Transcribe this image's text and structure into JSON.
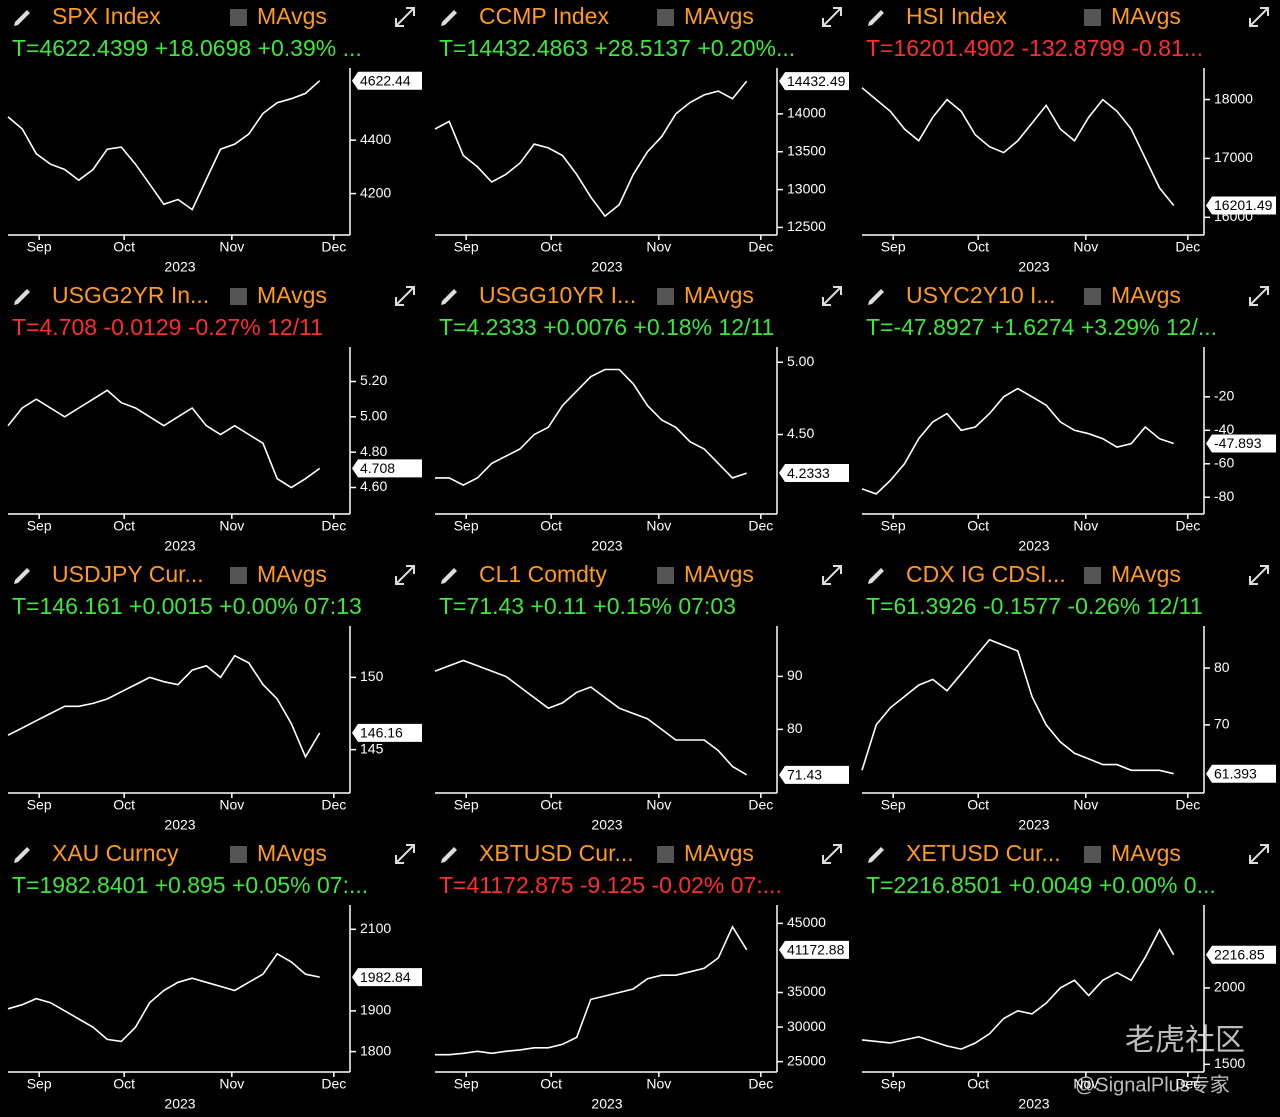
{
  "chart_data": [
    {
      "type": "line",
      "title": "SPX Index",
      "legend": "MAvgs",
      "quote": "T=4622.4399 +18.0698 +0.39% ...",
      "quote_color": "#3ee63e",
      "x": [
        0,
        5,
        10,
        15,
        20,
        25,
        30,
        35,
        40,
        45,
        50,
        55,
        60,
        65,
        70,
        75,
        80,
        85,
        90,
        95,
        100,
        105,
        110
      ],
      "values": [
        4487,
        4442,
        4349,
        4310,
        4290,
        4250,
        4290,
        4366,
        4374,
        4310,
        4235,
        4160,
        4178,
        4140,
        4253,
        4366,
        4385,
        4423,
        4500,
        4540,
        4555,
        4575,
        4622.4399
      ],
      "last_label": "4622.44",
      "xlim": [
        0,
        120
      ],
      "xticks": [
        {
          "value": 11,
          "label": "Sep"
        },
        {
          "value": 41,
          "label": "Oct"
        },
        {
          "value": 79,
          "label": "Nov"
        },
        {
          "value": 115,
          "label": "Dec"
        }
      ],
      "year": "2023",
      "ylim": [
        4045,
        4640
      ],
      "yticks": [
        4400,
        4200
      ]
    },
    {
      "type": "line",
      "title": "CCMP Index",
      "legend": "MAvgs",
      "quote": "T=14432.4863 +28.5137 +0.20%...",
      "quote_color": "#3ee63e",
      "x": [
        0,
        5,
        10,
        15,
        20,
        25,
        30,
        35,
        40,
        45,
        50,
        55,
        60,
        65,
        70,
        75,
        80,
        85,
        90,
        95,
        100,
        105,
        110
      ],
      "values": [
        13800,
        13900,
        13450,
        13300,
        13100,
        13200,
        13350,
        13600,
        13550,
        13450,
        13200,
        12900,
        12650,
        12800,
        13200,
        13500,
        13700,
        14000,
        14150,
        14250,
        14300,
        14200,
        14432.4863
      ],
      "last_label": "14432.49",
      "xlim": [
        0,
        120
      ],
      "xticks": [
        {
          "value": 11,
          "label": "Sep"
        },
        {
          "value": 41,
          "label": "Oct"
        },
        {
          "value": 79,
          "label": "Nov"
        },
        {
          "value": 115,
          "label": "Dec"
        }
      ],
      "year": "2023",
      "ylim": [
        12400,
        14500
      ],
      "yticks": [
        14000,
        13500,
        13000,
        12500
      ]
    },
    {
      "type": "line",
      "title": "HSI Index",
      "legend": "MAvgs",
      "quote": "T=16201.4902 -132.8799 -0.81...",
      "quote_color": "#ff2e2e",
      "x": [
        0,
        5,
        10,
        15,
        20,
        25,
        30,
        35,
        40,
        45,
        50,
        55,
        60,
        65,
        70,
        75,
        80,
        85,
        90,
        95,
        100,
        105,
        110
      ],
      "values": [
        18200,
        18000,
        17800,
        17500,
        17300,
        17700,
        18000,
        17800,
        17400,
        17200,
        17100,
        17300,
        17600,
        17900,
        17500,
        17300,
        17700,
        18000,
        17800,
        17500,
        17000,
        16500,
        16201.4902
      ],
      "last_label": "16201.49",
      "xlim": [
        0,
        120
      ],
      "xticks": [
        {
          "value": 11,
          "label": "Sep"
        },
        {
          "value": 41,
          "label": "Oct"
        },
        {
          "value": 79,
          "label": "Nov"
        },
        {
          "value": 115,
          "label": "Dec"
        }
      ],
      "year": "2023",
      "ylim": [
        15700,
        18400
      ],
      "yticks": [
        18000,
        17000,
        16000
      ]
    },
    {
      "type": "line",
      "title": "USGG2YR In...",
      "legend": "MAvgs",
      "quote": "T=4.708 -0.0129 -0.27% 12/11",
      "quote_color": "#ff2e2e",
      "x": [
        0,
        5,
        10,
        15,
        20,
        25,
        30,
        35,
        40,
        45,
        50,
        55,
        60,
        65,
        70,
        75,
        80,
        85,
        90,
        95,
        100,
        105,
        110
      ],
      "values": [
        4.95,
        5.05,
        5.1,
        5.05,
        5.0,
        5.05,
        5.1,
        5.15,
        5.08,
        5.05,
        5.0,
        4.95,
        5.0,
        5.05,
        4.95,
        4.9,
        4.95,
        4.9,
        4.85,
        4.65,
        4.6,
        4.65,
        4.708
      ],
      "last_label": "4.708",
      "xlim": [
        0,
        120
      ],
      "xticks": [
        {
          "value": 11,
          "label": "Sep"
        },
        {
          "value": 41,
          "label": "Oct"
        },
        {
          "value": 79,
          "label": "Nov"
        },
        {
          "value": 115,
          "label": "Dec"
        }
      ],
      "year": "2023",
      "ylim": [
        4.45,
        5.35
      ],
      "yticks": [
        {
          "value": 5.2,
          "label": "5.20"
        },
        {
          "value": 5,
          "label": "5.00"
        },
        {
          "value": 4.8,
          "label": "4.80"
        },
        {
          "value": 4.6,
          "label": "4.60"
        }
      ]
    },
    {
      "type": "line",
      "title": "USGG10YR I...",
      "legend": "MAvgs",
      "quote": "T=4.2333 +0.0076 +0.18% 12/11",
      "quote_color": "#3ee63e",
      "x": [
        0,
        5,
        10,
        15,
        20,
        25,
        30,
        35,
        40,
        45,
        50,
        55,
        60,
        65,
        70,
        75,
        80,
        85,
        90,
        95,
        100,
        105,
        110
      ],
      "values": [
        4.2,
        4.2,
        4.15,
        4.2,
        4.3,
        4.35,
        4.4,
        4.5,
        4.55,
        4.7,
        4.8,
        4.9,
        4.95,
        4.95,
        4.85,
        4.7,
        4.6,
        4.55,
        4.45,
        4.4,
        4.3,
        4.2,
        4.2333
      ],
      "last_label": "4.2333",
      "xlim": [
        0,
        120
      ],
      "xticks": [
        {
          "value": 11,
          "label": "Sep"
        },
        {
          "value": 41,
          "label": "Oct"
        },
        {
          "value": 79,
          "label": "Nov"
        },
        {
          "value": 115,
          "label": "Dec"
        }
      ],
      "year": "2023",
      "ylim": [
        3.95,
        5.05
      ],
      "yticks": [
        {
          "value": 5,
          "label": "5.00"
        },
        {
          "value": 4.5,
          "label": "4.50"
        }
      ]
    },
    {
      "type": "line",
      "title": "USYC2Y10 I...",
      "legend": "MAvgs",
      "quote": "T=-47.8927 +1.6274 +3.29% 12/...",
      "quote_color": "#3ee63e",
      "x": [
        0,
        5,
        10,
        15,
        20,
        25,
        30,
        35,
        40,
        45,
        50,
        55,
        60,
        65,
        70,
        75,
        80,
        85,
        90,
        95,
        100,
        105,
        110
      ],
      "values": [
        -75,
        -78,
        -70,
        -60,
        -45,
        -35,
        -30,
        -40,
        -38,
        -30,
        -20,
        -15,
        -20,
        -25,
        -35,
        -40,
        -42,
        -45,
        -50,
        -48,
        -38,
        -45,
        -47.8927
      ],
      "last_label": "-47.893",
      "xlim": [
        0,
        120
      ],
      "xticks": [
        {
          "value": 11,
          "label": "Sep"
        },
        {
          "value": 41,
          "label": "Oct"
        },
        {
          "value": 79,
          "label": "Nov"
        },
        {
          "value": 115,
          "label": "Dec"
        }
      ],
      "year": "2023",
      "ylim": [
        -90,
        5
      ],
      "yticks": [
        -20,
        -40,
        -60,
        -80
      ]
    },
    {
      "type": "line",
      "title": "USDJPY Cur...",
      "legend": "MAvgs",
      "quote": "T=146.161 +0.0015 +0.00% 07:13",
      "quote_color": "#3ee63e",
      "x": [
        0,
        5,
        10,
        15,
        20,
        25,
        30,
        35,
        40,
        45,
        50,
        55,
        60,
        65,
        70,
        75,
        80,
        85,
        90,
        95,
        100,
        105,
        110
      ],
      "values": [
        146.0,
        146.5,
        147.0,
        147.5,
        148.0,
        148.0,
        148.2,
        148.5,
        149.0,
        149.5,
        150.0,
        149.7,
        149.5,
        150.5,
        150.8,
        150.0,
        151.5,
        151.0,
        149.5,
        148.5,
        146.8,
        144.5,
        146.161
      ],
      "last_label": "146.16",
      "xlim": [
        0,
        120
      ],
      "xticks": [
        {
          "value": 11,
          "label": "Sep"
        },
        {
          "value": 41,
          "label": "Oct"
        },
        {
          "value": 79,
          "label": "Nov"
        },
        {
          "value": 115,
          "label": "Dec"
        }
      ],
      "year": "2023",
      "ylim": [
        142,
        153
      ],
      "yticks": [
        150,
        145
      ]
    },
    {
      "type": "line",
      "title": "CL1 Comdty",
      "legend": "MAvgs",
      "quote": "T=71.43 +0.11 +0.15% 07:03",
      "quote_color": "#3ee63e",
      "x": [
        0,
        5,
        10,
        15,
        20,
        25,
        30,
        35,
        40,
        45,
        50,
        55,
        60,
        65,
        70,
        75,
        80,
        85,
        90,
        95,
        100,
        105,
        110
      ],
      "values": [
        91,
        92,
        93,
        92,
        91,
        90,
        88,
        86,
        84,
        85,
        87,
        88,
        86,
        84,
        83,
        82,
        80,
        78,
        78,
        78,
        76,
        73,
        71.43
      ],
      "last_label": "71.43",
      "xlim": [
        0,
        120
      ],
      "xticks": [
        {
          "value": 11,
          "label": "Sep"
        },
        {
          "value": 41,
          "label": "Oct"
        },
        {
          "value": 79,
          "label": "Nov"
        },
        {
          "value": 115,
          "label": "Dec"
        }
      ],
      "year": "2023",
      "ylim": [
        68,
        98
      ],
      "yticks": [
        90,
        80
      ]
    },
    {
      "type": "line",
      "title": "CDX IG CDSI...",
      "legend": "MAvgs",
      "quote": "T=61.3926 -0.1577 -0.26% 12/11",
      "quote_color": "#3ee63e",
      "x": [
        0,
        5,
        10,
        15,
        20,
        25,
        30,
        35,
        40,
        45,
        50,
        55,
        60,
        65,
        70,
        75,
        80,
        85,
        90,
        95,
        100,
        105,
        110
      ],
      "values": [
        62,
        70,
        73,
        75,
        77,
        78,
        76,
        79,
        82,
        85,
        84,
        83,
        75,
        70,
        67,
        65,
        64,
        63,
        63,
        62,
        62,
        62,
        61.3926
      ],
      "last_label": "61.393",
      "xlim": [
        0,
        120
      ],
      "xticks": [
        {
          "value": 11,
          "label": "Sep"
        },
        {
          "value": 41,
          "label": "Oct"
        },
        {
          "value": 79,
          "label": "Nov"
        },
        {
          "value": 115,
          "label": "Dec"
        }
      ],
      "year": "2023",
      "ylim": [
        58,
        86
      ],
      "yticks": [
        80,
        70
      ]
    },
    {
      "type": "line",
      "title": "XAU Curncy",
      "legend": "MAvgs",
      "quote": "T=1982.8401 +0.895 +0.05% 07:...",
      "quote_color": "#3ee63e",
      "x": [
        0,
        5,
        10,
        15,
        20,
        25,
        30,
        35,
        40,
        45,
        50,
        55,
        60,
        65,
        70,
        75,
        80,
        85,
        90,
        95,
        100,
        105,
        110
      ],
      "values": [
        1905,
        1915,
        1930,
        1920,
        1900,
        1880,
        1860,
        1830,
        1825,
        1860,
        1920,
        1950,
        1970,
        1980,
        1970,
        1960,
        1950,
        1970,
        1990,
        2040,
        2020,
        1990,
        1982.8401
      ],
      "last_label": "1982.84",
      "xlim": [
        0,
        120
      ],
      "xticks": [
        {
          "value": 11,
          "label": "Sep"
        },
        {
          "value": 41,
          "label": "Oct"
        },
        {
          "value": 79,
          "label": "Nov"
        },
        {
          "value": 115,
          "label": "Dec"
        }
      ],
      "year": "2023",
      "ylim": [
        1750,
        2140
      ],
      "yticks": [
        2100,
        1900,
        1800
      ]
    },
    {
      "type": "line",
      "title": "XBTUSD Cur...",
      "legend": "MAvgs",
      "quote": "T=41172.875 -9.125 -0.02% 07:...",
      "quote_color": "#ff2e2e",
      "x": [
        0,
        5,
        10,
        15,
        20,
        25,
        30,
        35,
        40,
        45,
        50,
        55,
        60,
        65,
        70,
        75,
        80,
        85,
        90,
        95,
        100,
        105,
        110
      ],
      "values": [
        26000,
        26000,
        26200,
        26500,
        26200,
        26500,
        26700,
        27000,
        27000,
        27500,
        28500,
        34000,
        34500,
        35000,
        35500,
        37000,
        37500,
        37500,
        38000,
        38500,
        40000,
        44500,
        41172.875
      ],
      "last_label": "41172.88",
      "xlim": [
        0,
        120
      ],
      "xticks": [
        {
          "value": 11,
          "label": "Sep"
        },
        {
          "value": 41,
          "label": "Oct"
        },
        {
          "value": 79,
          "label": "Nov"
        },
        {
          "value": 115,
          "label": "Dec"
        }
      ],
      "year": "2023",
      "ylim": [
        23500,
        46500
      ],
      "yticks": [
        45000,
        35000,
        30000,
        25000
      ]
    },
    {
      "type": "line",
      "title": "XETUSD Cur...",
      "legend": "MAvgs",
      "quote": "T=2216.8501 +0.0049 +0.00% 0...",
      "quote_color": "#3ee63e",
      "x": [
        0,
        5,
        10,
        15,
        20,
        25,
        30,
        35,
        40,
        45,
        50,
        55,
        60,
        65,
        70,
        75,
        80,
        85,
        90,
        95,
        100,
        105,
        110
      ],
      "values": [
        1660,
        1650,
        1640,
        1660,
        1680,
        1650,
        1620,
        1600,
        1640,
        1700,
        1800,
        1850,
        1830,
        1900,
        2000,
        2050,
        1950,
        2050,
        2100,
        2050,
        2200,
        2380,
        2216.8501
      ],
      "last_label": "2216.85",
      "xlim": [
        0,
        120
      ],
      "xticks": [
        {
          "value": 11,
          "label": "Sep"
        },
        {
          "value": 41,
          "label": "Oct"
        },
        {
          "value": 79,
          "label": "Nov"
        },
        {
          "value": 115,
          "label": "Dec"
        }
      ],
      "year": "2023",
      "ylim": [
        1450,
        2490
      ],
      "yticks": [
        2000,
        1500
      ]
    }
  ],
  "watermark": {
    "logo": "老虎社区",
    "credit": "@SignalPlus专家"
  }
}
